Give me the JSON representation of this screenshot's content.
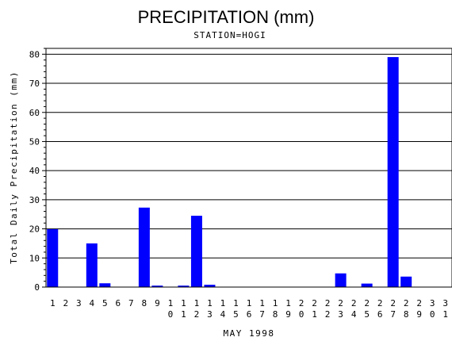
{
  "chart_data": {
    "type": "bar",
    "title": "PRECIPITATION (mm)",
    "subtitle": "STATION=HOGI",
    "xlabel": "MAY 1998",
    "ylabel": "Total Daily Precipitation (mm)",
    "ylim": [
      0,
      82
    ],
    "yticks": [
      0,
      10,
      20,
      30,
      40,
      50,
      60,
      70,
      80
    ],
    "grid": "horizontal",
    "bar_color": "#0000ff",
    "categories": [
      "1",
      "2",
      "3",
      "4",
      "5",
      "6",
      "7",
      "8",
      "9",
      "10",
      "11",
      "12",
      "13",
      "14",
      "15",
      "16",
      "17",
      "18",
      "19",
      "20",
      "21",
      "22",
      "23",
      "24",
      "25",
      "26",
      "27",
      "28",
      "29",
      "30",
      "31"
    ],
    "values": [
      19.9,
      0,
      0,
      15.0,
      1.3,
      0,
      0,
      27.3,
      0.5,
      0,
      0.5,
      24.5,
      0.8,
      0,
      0,
      0,
      0,
      0,
      0,
      0,
      0,
      0,
      4.7,
      0,
      1.2,
      0,
      79.0,
      3.6,
      0,
      0,
      0
    ]
  }
}
